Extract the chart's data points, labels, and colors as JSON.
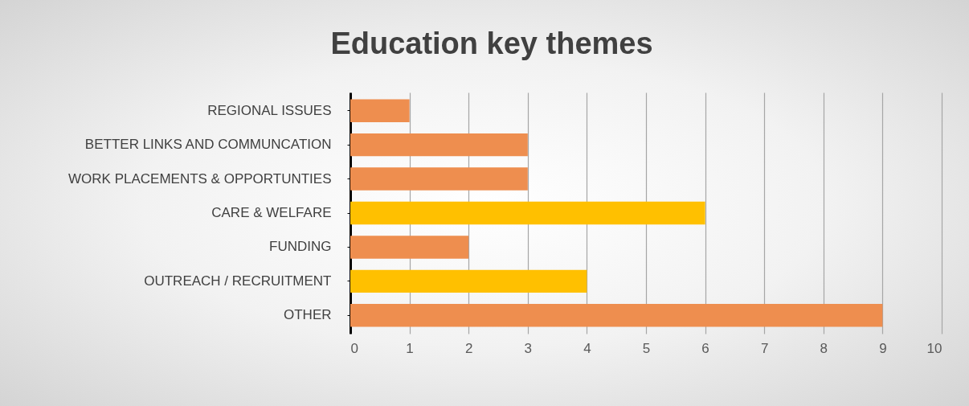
{
  "chart_data": {
    "type": "bar",
    "orientation": "horizontal",
    "title": "Education key themes",
    "categories": [
      "REGIONAL ISSUES",
      "BETTER LINKS AND COMMUNCATION",
      "WORK PLACEMENTS & OPPORTUNTIES",
      "CARE & WELFARE",
      "FUNDING",
      "OUTREACH / RECRUITMENT",
      "OTHER"
    ],
    "values": [
      1,
      3,
      3,
      6,
      2,
      4,
      9
    ],
    "colors": [
      "#ee8e4f",
      "#ee8e4f",
      "#ee8e4f",
      "#ffc000",
      "#ee8e4f",
      "#ffc000",
      "#ee8e4f"
    ],
    "xlim": [
      0,
      10
    ],
    "xticks": [
      0,
      1,
      2,
      3,
      4,
      5,
      6,
      7,
      8,
      9,
      10
    ],
    "grid": "x",
    "legend": false
  }
}
